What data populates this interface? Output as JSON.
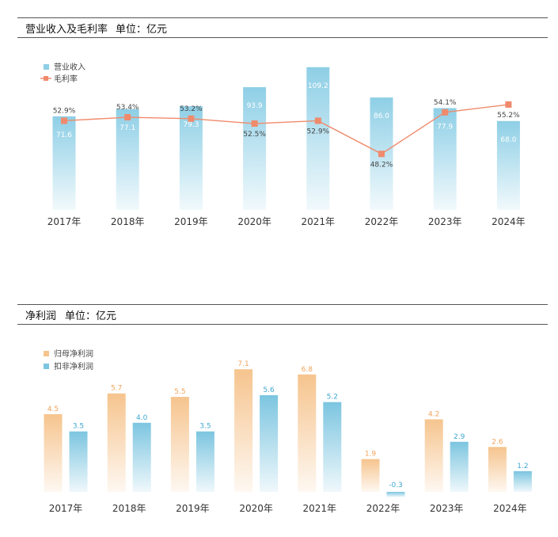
{
  "chart_data": [
    {
      "type": "bar",
      "header": "营业收入及毛利率",
      "unit": "单位：亿元",
      "categories": [
        "2017年",
        "2018年",
        "2019年",
        "2020年",
        "2021年",
        "2022年",
        "2023年",
        "2024年"
      ],
      "series": [
        {
          "name": "营业收入",
          "type": "bar",
          "values": [
            71.6,
            77.1,
            79.3,
            93.9,
            109.2,
            86.0,
            77.9,
            68.0
          ],
          "labels": [
            "71.6",
            "77.1",
            "79.3",
            "93.9",
            "109.2",
            "86.0",
            "77.9",
            "68.0"
          ]
        },
        {
          "name": "毛利率",
          "type": "line",
          "values": [
            52.9,
            53.4,
            53.2,
            52.5,
            52.9,
            48.2,
            54.1,
            55.2
          ],
          "labels": [
            "52.9%",
            "53.4%",
            "53.2%",
            "52.5%",
            "52.9%",
            "48.2%",
            "54.1%",
            "55.2%"
          ]
        }
      ],
      "colors": {
        "bar": "#8ecfe6",
        "line": "#f08a6c"
      }
    },
    {
      "type": "bar",
      "header": "净利润",
      "unit": "单位：亿元",
      "categories": [
        "2017年",
        "2018年",
        "2019年",
        "2020年",
        "2021年",
        "2022年",
        "2023年",
        "2024年"
      ],
      "series": [
        {
          "name": "归母净利润",
          "values": [
            4.5,
            5.7,
            5.5,
            7.1,
            6.8,
            1.9,
            4.2,
            2.6
          ],
          "labels": [
            "4.5",
            "5.7",
            "5.5",
            "7.1",
            "6.8",
            "1.9",
            "4.2",
            "2.6"
          ]
        },
        {
          "name": "扣非净利润",
          "values": [
            3.5,
            4.0,
            3.5,
            5.6,
            5.2,
            -0.3,
            2.9,
            1.2
          ],
          "labels": [
            "3.5",
            "4.0",
            "3.5",
            "5.6",
            "5.2",
            "-0.3",
            "2.9",
            "1.2"
          ]
        }
      ],
      "colors": {
        "a": "#f6c48e",
        "b": "#7cc5e0"
      }
    }
  ]
}
